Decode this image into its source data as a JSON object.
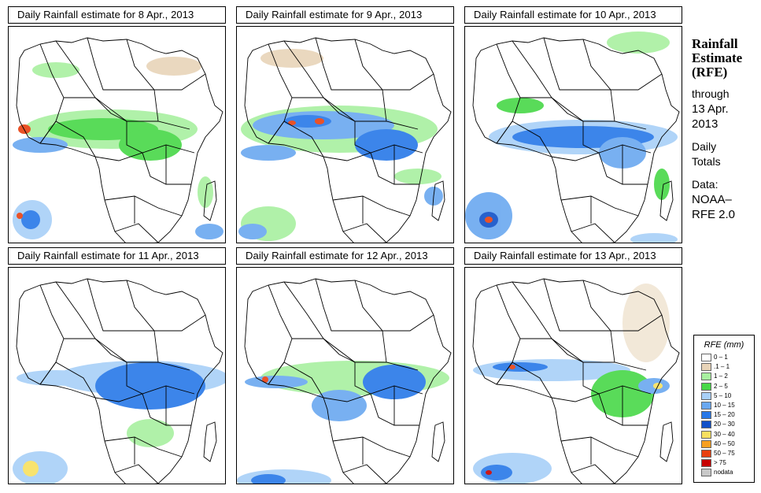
{
  "panels": [
    {
      "title": "Daily Rainfall estimate for  8 Apr., 2013"
    },
    {
      "title": "Daily Rainfall estimate for  9 Apr., 2013"
    },
    {
      "title": "Daily Rainfall estimate for  10 Apr., 2013"
    },
    {
      "title": "Daily Rainfall estimate for  11 Apr., 2013"
    },
    {
      "title": "Daily Rainfall estimate for  12 Apr., 2013"
    },
    {
      "title": "Daily Rainfall estimate for  13 Apr., 2013"
    }
  ],
  "sidebar": {
    "title_line1": "Rainfall",
    "title_line2": "Estimate",
    "title_line3": "(RFE)",
    "through": "through",
    "through_date_line1": "13 Apr.",
    "through_date_line2": "2013",
    "daily_line1": "Daily",
    "daily_line2": "Totals",
    "data_label": "Data:",
    "data_line1": "NOAA–",
    "data_line2": "RFE 2.0"
  },
  "legend": {
    "title": "RFE (mm)",
    "items": [
      {
        "label": "0 – 1",
        "color": "#ffffff"
      },
      {
        "label": ".1 – 1",
        "color": "#e8d4b8"
      },
      {
        "label": "1 – 2",
        "color": "#a8f0a0"
      },
      {
        "label": "2 – 5",
        "color": "#48d848"
      },
      {
        "label": "5 – 10",
        "color": "#a8d0f8"
      },
      {
        "label": "10 – 15",
        "color": "#6aa8f0"
      },
      {
        "label": "15 – 20",
        "color": "#2878e8"
      },
      {
        "label": "20 – 30",
        "color": "#1050c8"
      },
      {
        "label": "30 – 40",
        "color": "#f8e060"
      },
      {
        "label": "40 – 50",
        "color": "#f8a020"
      },
      {
        "label": "50 – 75",
        "color": "#e84010"
      },
      {
        "label": "> 75",
        "color": "#c80000"
      },
      {
        "label": "nodata",
        "color": "#c8c8c8"
      }
    ]
  }
}
